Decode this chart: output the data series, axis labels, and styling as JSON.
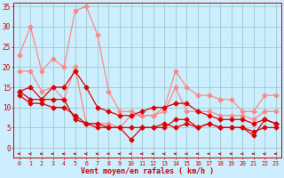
{
  "x": [
    0,
    1,
    2,
    3,
    4,
    5,
    6,
    7,
    8,
    9,
    10,
    11,
    12,
    13,
    14,
    15,
    16,
    17,
    18,
    19,
    20,
    21,
    22,
    23
  ],
  "line_pink_upper": [
    23,
    30,
    19,
    22,
    20,
    34,
    35,
    28,
    14,
    9,
    9,
    8,
    8,
    10,
    19,
    15,
    13,
    13,
    12,
    12,
    9,
    9,
    13,
    13
  ],
  "line_pink_lower": [
    19,
    19,
    14,
    15,
    12,
    20,
    6,
    6,
    6,
    5,
    8,
    8,
    8,
    9,
    15,
    9,
    9,
    9,
    8,
    8,
    8,
    7,
    9,
    9
  ],
  "line_red_upper": [
    14,
    15,
    12,
    15,
    15,
    19,
    15,
    10,
    9,
    8,
    8,
    9,
    10,
    10,
    11,
    11,
    9,
    8,
    7,
    7,
    7,
    6,
    7,
    6
  ],
  "line_red_lower": [
    13,
    11,
    11,
    10,
    10,
    8,
    6,
    6,
    5,
    5,
    5,
    5,
    5,
    6,
    5,
    6,
    5,
    6,
    5,
    5,
    5,
    4,
    5,
    5
  ],
  "line_red_mid": [
    14,
    12,
    12,
    12,
    12,
    7,
    6,
    5,
    5,
    5,
    2,
    5,
    5,
    5,
    7,
    7,
    5,
    6,
    5,
    5,
    5,
    3,
    7,
    6
  ],
  "bg_color": "#cceeff",
  "grid_color": "#99cccc",
  "line_pink_color": "#ff8888",
  "line_red_color": "#dd0000",
  "xlabel": "Vent moyen/en rafales ( km/h )",
  "xlabel_color": "#cc0000",
  "tick_color": "#cc0000",
  "arrow_color": "#cc0000",
  "ylim_min": 0,
  "ylim_max": 36,
  "xlim_min": -0.5,
  "xlim_max": 23.5
}
